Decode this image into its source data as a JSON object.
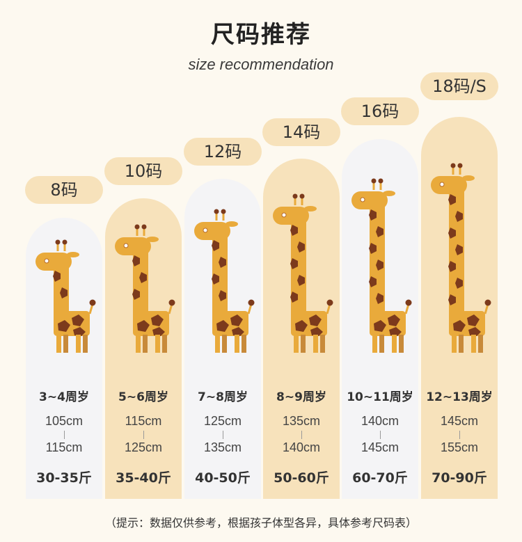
{
  "header": {
    "title": "尺码推荐",
    "subtitle": "size recommendation"
  },
  "sizes": [
    {
      "size": "8码",
      "age": "3~4周岁",
      "height_min": "105cm",
      "height_max": "115cm",
      "weight": "30-35斤",
      "theme": "light"
    },
    {
      "size": "10码",
      "age": "5~6周岁",
      "height_min": "115cm",
      "height_max": "125cm",
      "weight": "35-40斤",
      "theme": "tan"
    },
    {
      "size": "12码",
      "age": "7~8周岁",
      "height_min": "125cm",
      "height_max": "135cm",
      "weight": "40-50斤",
      "theme": "light"
    },
    {
      "size": "14码",
      "age": "8~9周岁",
      "height_min": "135cm",
      "height_max": "140cm",
      "weight": "50-60斤",
      "theme": "tan"
    },
    {
      "size": "16码",
      "age": "10~11周岁",
      "height_min": "140cm",
      "height_max": "145cm",
      "weight": "60-70斤",
      "theme": "light"
    },
    {
      "size": "18码/S",
      "age": "12~13周岁",
      "height_min": "145cm",
      "height_max": "155cm",
      "weight": "70-90斤",
      "theme": "tan"
    }
  ],
  "footer": {
    "note": "（提示：数据仅供参考，根据孩子体型各异，具体参考尺码表）"
  },
  "colors": {
    "giraffe_body": "#e9aa3b",
    "giraffe_spot": "#7c3a1c",
    "giraffe_leg": "#c88a3a",
    "column_light": "#f4f4f6",
    "column_tan": "#f7e2bb",
    "background": "#fdf9f0"
  }
}
